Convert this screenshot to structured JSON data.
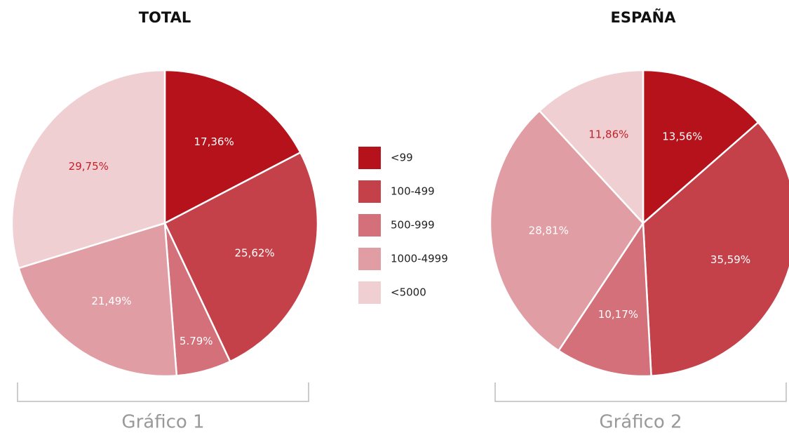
{
  "chart_data": [
    {
      "type": "pie",
      "title": "TOTAL",
      "caption": "Gráfico 1",
      "values": [
        17.36,
        25.62,
        5.79,
        21.49,
        29.75
      ],
      "value_labels": [
        "17,36%",
        "25,62%",
        "5.79%",
        "21,49%",
        "29,75%"
      ]
    },
    {
      "type": "pie",
      "title": "ESPAÑA",
      "caption": "Gráfico 2",
      "values": [
        13.56,
        35.59,
        10.17,
        28.81,
        11.86
      ],
      "value_labels": [
        "13,56%",
        "35,59%",
        "10,17%",
        "28,81%",
        "11,86%"
      ]
    }
  ],
  "legend": {
    "labels": [
      "<99",
      "100-499",
      "500-999",
      "1000-4999",
      "<5000"
    ],
    "colors": [
      "#b5121b",
      "#c4414a",
      "#d4707a",
      "#e09ea4",
      "#f0cfd2"
    ]
  }
}
